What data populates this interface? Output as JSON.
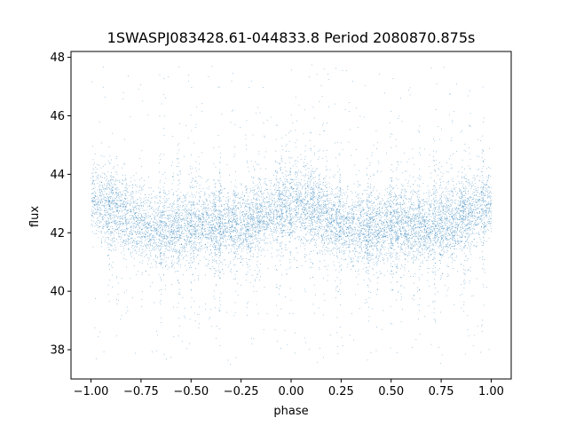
{
  "chart_data": {
    "type": "scatter",
    "title": "1SWASPJ083428.61-044833.8 Period 2080870.875s",
    "xlabel": "phase",
    "ylabel": "flux",
    "xlim": [
      -1.1,
      1.1
    ],
    "ylim": [
      37,
      48.2
    ],
    "x_ticks": [
      -1.0,
      -0.75,
      -0.5,
      -0.25,
      0.0,
      0.25,
      0.5,
      0.75,
      1.0
    ],
    "x_tick_labels": [
      "−1.00",
      "−0.75",
      "−0.50",
      "−0.25",
      "0.00",
      "0.25",
      "0.50",
      "0.75",
      "1.00"
    ],
    "y_ticks": [
      38,
      40,
      42,
      44,
      46,
      48
    ],
    "y_tick_labels": [
      "38",
      "40",
      "42",
      "44",
      "46",
      "48"
    ],
    "grid": false,
    "legend": "none",
    "marker_color": "#1f77b4",
    "series_summary": {
      "x_range": [
        -1.0,
        1.0
      ],
      "flux_core_range": [
        40.5,
        44.5
      ],
      "flux_median": 42.4,
      "flux_outlier_range": [
        37.5,
        47.7
      ]
    },
    "point_samples": [
      {
        "x": -1.0,
        "y": 42.3
      },
      {
        "x": -0.9,
        "y": 42.1
      },
      {
        "x": -0.8,
        "y": 41.8
      },
      {
        "x": -0.7,
        "y": 42.6
      },
      {
        "x": -0.6,
        "y": 42.9
      },
      {
        "x": -0.5,
        "y": 43.0
      },
      {
        "x": -0.4,
        "y": 42.8
      },
      {
        "x": -0.3,
        "y": 42.7
      },
      {
        "x": -0.2,
        "y": 42.2
      },
      {
        "x": -0.1,
        "y": 42.0
      },
      {
        "x": 0.0,
        "y": 42.0
      },
      {
        "x": 0.1,
        "y": 42.1
      },
      {
        "x": 0.2,
        "y": 41.9
      },
      {
        "x": 0.3,
        "y": 42.5
      },
      {
        "x": 0.4,
        "y": 42.7
      },
      {
        "x": 0.5,
        "y": 42.9
      },
      {
        "x": 0.6,
        "y": 42.8
      },
      {
        "x": 0.7,
        "y": 42.6
      },
      {
        "x": 0.8,
        "y": 42.4
      },
      {
        "x": 0.9,
        "y": 42.1
      },
      {
        "x": 1.0,
        "y": 42.2
      }
    ]
  }
}
